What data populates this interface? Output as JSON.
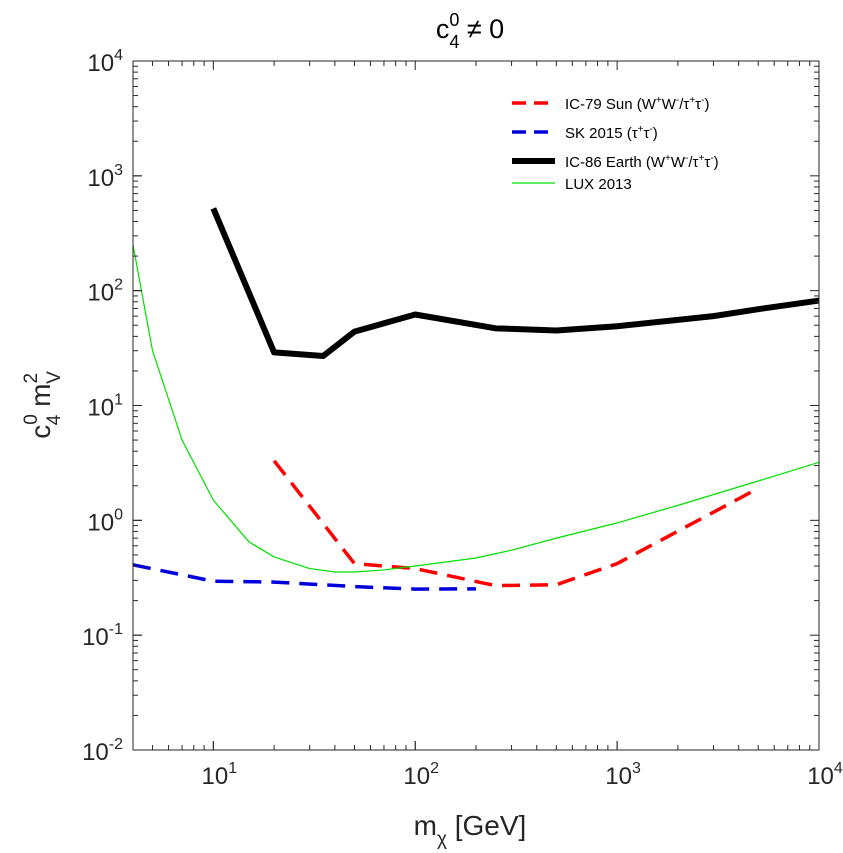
{
  "chart_data": {
    "type": "line",
    "title": {
      "base": "c",
      "sup": "0",
      "sub": "4",
      "rest": " ≠ 0"
    },
    "xlabel": {
      "base": "m",
      "sub": "χ",
      "rest": "  [GeV]"
    },
    "ylabel": {
      "c": "c",
      "c_sup": "0",
      "c_sub": "4",
      "m": " m",
      "m_sup": "2",
      "m_sub": "V"
    },
    "xscale": "log",
    "yscale": "log",
    "xlim": [
      4,
      10000
    ],
    "ylim": [
      0.01,
      10000
    ],
    "grid": false,
    "legend_position": "top-right",
    "x_ticks": [
      {
        "value": 10,
        "base": "10",
        "exp": "1"
      },
      {
        "value": 100,
        "base": "10",
        "exp": "2"
      },
      {
        "value": 1000,
        "base": "10",
        "exp": "3"
      },
      {
        "value": 10000,
        "base": "10",
        "exp": "4"
      }
    ],
    "y_ticks": [
      {
        "value": 0.01,
        "base": "10",
        "exp": "-2"
      },
      {
        "value": 0.1,
        "base": "10",
        "exp": "-1"
      },
      {
        "value": 1,
        "base": "10",
        "exp": "0"
      },
      {
        "value": 10,
        "base": "10",
        "exp": "1"
      },
      {
        "value": 100,
        "base": "10",
        "exp": "2"
      },
      {
        "value": 1000,
        "base": "10",
        "exp": "3"
      },
      {
        "value": 10000,
        "base": "10",
        "exp": "4"
      }
    ],
    "series": [
      {
        "id": "ic79",
        "name": "IC-79 Sun (W⁺W⁻/τ⁺τ⁻)",
        "color": "#ff0000",
        "style": "dashed",
        "width": 3.5,
        "points": [
          [
            20,
            3.3
          ],
          [
            50,
            0.42
          ],
          [
            100,
            0.38
          ],
          [
            250,
            0.27
          ],
          [
            500,
            0.275
          ],
          [
            1000,
            0.42
          ],
          [
            5000,
            1.9
          ]
        ]
      },
      {
        "id": "sk2015",
        "name": "SK 2015 (τ⁺τ⁻)",
        "color": "#0000dd",
        "style": "dashed",
        "width": 3.5,
        "points": [
          [
            4,
            0.41
          ],
          [
            10,
            0.295
          ],
          [
            20,
            0.29
          ],
          [
            50,
            0.265
          ],
          [
            100,
            0.252
          ],
          [
            200,
            0.253
          ]
        ]
      },
      {
        "id": "ic86",
        "name": "IC-86 Earth (W⁺W⁻/τ⁺τ⁻)",
        "color": "#000000",
        "style": "solid",
        "width": 6,
        "points": [
          [
            10,
            520
          ],
          [
            20,
            29
          ],
          [
            35,
            27
          ],
          [
            50,
            44
          ],
          [
            100,
            62
          ],
          [
            250,
            47
          ],
          [
            500,
            45
          ],
          [
            1000,
            49
          ],
          [
            3000,
            60
          ],
          [
            5000,
            69
          ],
          [
            10000,
            82
          ]
        ]
      },
      {
        "id": "lux",
        "name": "LUX 2013",
        "color": "#00e000",
        "style": "solid",
        "width": 1.2,
        "points": [
          [
            4,
            250
          ],
          [
            5,
            30
          ],
          [
            7,
            5
          ],
          [
            10,
            1.5
          ],
          [
            15,
            0.65
          ],
          [
            20,
            0.48
          ],
          [
            30,
            0.38
          ],
          [
            40,
            0.355
          ],
          [
            50,
            0.355
          ],
          [
            70,
            0.37
          ],
          [
            100,
            0.4
          ],
          [
            200,
            0.47
          ],
          [
            300,
            0.55
          ],
          [
            500,
            0.7
          ],
          [
            1000,
            0.95
          ],
          [
            2000,
            1.35
          ],
          [
            5000,
            2.2
          ],
          [
            10000,
            3.2
          ]
        ]
      }
    ],
    "legend": [
      {
        "series": "ic79",
        "base": "IC-79 Sun (W",
        "s1": "+",
        "t1": "W",
        "s2": "-",
        "t2": "/τ",
        "s3": "+",
        "t3": "τ",
        "s4": "-",
        "t4": ")"
      },
      {
        "series": "sk2015",
        "base": "SK 2015 (τ",
        "s1": "+",
        "t1": "τ",
        "s2": "-",
        "t2": ")"
      },
      {
        "series": "ic86",
        "base": "IC-86 Earth (W",
        "s1": "+",
        "t1": "W",
        "s2": "-",
        "t2": "/τ",
        "s3": "+",
        "t3": "τ",
        "s4": "-",
        "t4": ")"
      },
      {
        "series": "lux",
        "base": "LUX 2013"
      }
    ]
  }
}
